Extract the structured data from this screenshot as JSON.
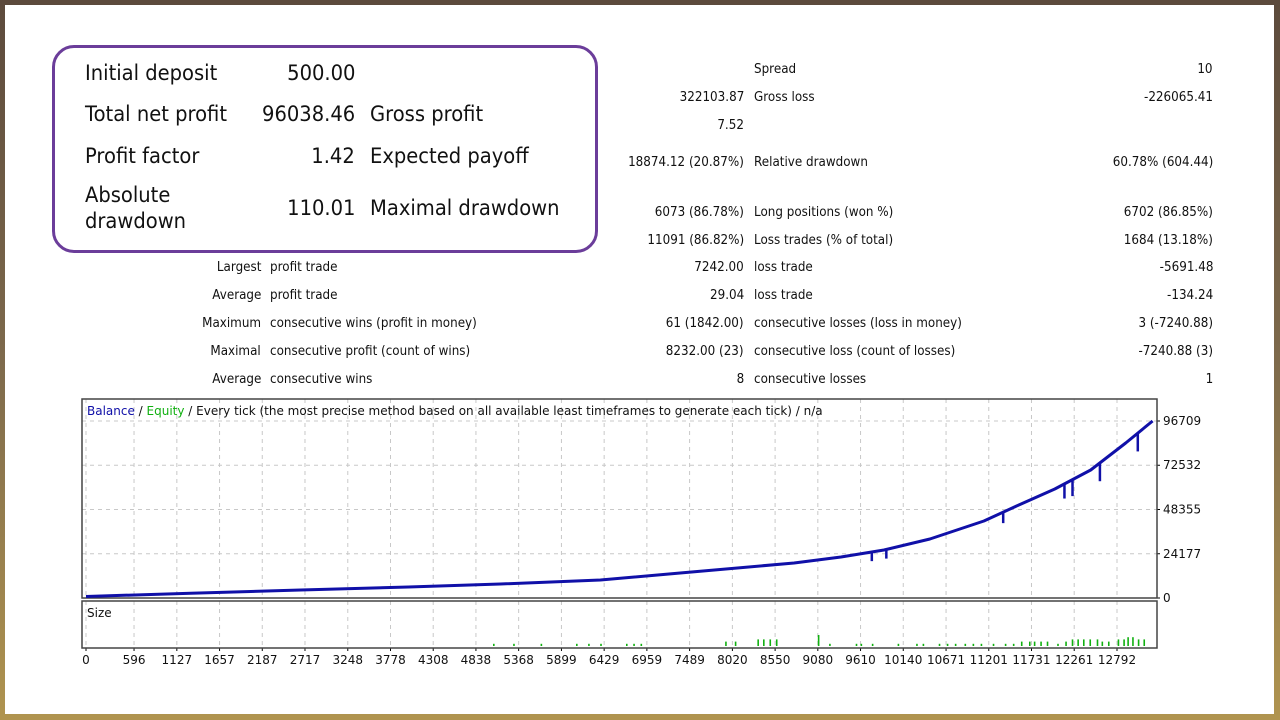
{
  "summary_box": {
    "rows": [
      {
        "label": "Initial deposit",
        "value": "500.00",
        "label2": ""
      },
      {
        "label": "Total net profit",
        "value": "96038.46",
        "label2": "Gross profit"
      },
      {
        "label": "Profit factor",
        "value": "1.42",
        "label2": "Expected payoff"
      },
      {
        "label": "Absolute",
        "label_line2": "drawdown",
        "value": "110.01",
        "label2": "Maximal drawdown"
      }
    ]
  },
  "right_rows": [
    {
      "value": "",
      "label": "Spread",
      "value2": "10"
    },
    {
      "value": "322103.87",
      "label": "Gross loss",
      "value2": "-226065.41"
    },
    {
      "value": "7.52",
      "label": "",
      "value2": ""
    },
    {
      "value": "18874.12 (20.87%)",
      "label": "Relative drawdown",
      "value2": "60.78% (604.44)"
    },
    {
      "value": "6073 (86.78%)",
      "label": "Long positions (won %)",
      "value2": "6702 (86.85%)"
    },
    {
      "value": "11091 (86.82%)",
      "label": "Loss trades (% of total)",
      "value2": "1684 (13.18%)"
    }
  ],
  "stats_rows": [
    {
      "prefix": "Largest",
      "label": "profit trade",
      "value": "7242.00",
      "label2": "loss trade",
      "value2": "-5691.48"
    },
    {
      "prefix": "Average",
      "label": "profit trade",
      "value": "29.04",
      "label2": "loss trade",
      "value2": "-134.24"
    },
    {
      "prefix": "Maximum",
      "label": "consecutive wins (profit in money)",
      "value": "61 (1842.00)",
      "label2": "consecutive losses (loss in money)",
      "value2": "3 (-7240.88)"
    },
    {
      "prefix": "Maximal",
      "label": "consecutive profit (count of wins)",
      "value": "8232.00 (23)",
      "label2": "consecutive loss (count of losses)",
      "value2": "-7240.88 (3)"
    },
    {
      "prefix": "Average",
      "label": "consecutive wins",
      "value": "8",
      "label2": "consecutive losses",
      "value2": "1"
    }
  ],
  "chart_data": {
    "type": "line",
    "title_parts": {
      "balance": "Balance",
      "sep1": " / ",
      "equity": "Equity",
      "rest": " / Every tick (the most precise method based on all available least timeframes to generate each tick) / n/a"
    },
    "size_label": "Size",
    "colors": {
      "balance": "#1010a8",
      "equity": "#10b010",
      "size": "#10b010"
    },
    "x_ticks": [
      "0",
      "596",
      "1127",
      "1657",
      "2187",
      "2717",
      "3248",
      "3778",
      "4308",
      "4838",
      "5368",
      "5899",
      "6429",
      "6959",
      "7489",
      "8020",
      "8550",
      "9080",
      "9610",
      "10140",
      "10671",
      "11201",
      "11731",
      "12261",
      "12792"
    ],
    "y_ticks": [
      "0",
      "24177",
      "48355",
      "72532",
      "96709"
    ],
    "xlim": [
      0,
      13250
    ],
    "ylim": [
      0,
      96709
    ],
    "series": [
      {
        "name": "Balance",
        "x": [
          0,
          1300,
          2664,
          4000,
          5142,
          6382,
          7373,
          8786,
          9368,
          9901,
          10471,
          11140,
          11574,
          12020,
          12466,
          12900,
          13234
        ],
        "y": [
          800,
          2600,
          4371,
          6000,
          7649,
          9835,
          13660,
          19123,
          22400,
          26226,
          32236,
          42071,
          50813,
          59555,
          69936,
          84689,
          96709
        ]
      }
    ],
    "drawdown_spikes": [
      {
        "x": 9750,
        "depth": 5000
      },
      {
        "x": 9930,
        "depth": 5000
      },
      {
        "x": 11380,
        "depth": 6000
      },
      {
        "x": 12140,
        "depth": 8000
      },
      {
        "x": 12240,
        "depth": 9000
      },
      {
        "x": 12580,
        "depth": 10000
      },
      {
        "x": 13050,
        "depth": 10000
      }
    ],
    "size_bars": {
      "x": [
        5050,
        5300,
        5640,
        6080,
        6230,
        6380,
        6700,
        6790,
        6880,
        7930,
        8050,
        8330,
        8400,
        8480,
        8560,
        9080,
        9220,
        9550,
        9610,
        9750,
        10070,
        10300,
        10380,
        10580,
        10680,
        10780,
        10900,
        11000,
        11100,
        11250,
        11400,
        11500,
        11600,
        11700,
        11760,
        11840,
        11920,
        12050,
        12150,
        12230,
        12300,
        12370,
        12450,
        12540,
        12600,
        12680,
        12800,
        12870,
        12920,
        12980,
        13050,
        13120
      ],
      "v": [
        1,
        1,
        1,
        1,
        1,
        1,
        1,
        1,
        1,
        2,
        2,
        3,
        3,
        3,
        3,
        5,
        1,
        1,
        1,
        1,
        1,
        1,
        1,
        1,
        1,
        1,
        1,
        1,
        1,
        1,
        1,
        1,
        2,
        2,
        2,
        2,
        2,
        1,
        2,
        3,
        3,
        3,
        3,
        3,
        2,
        2,
        3,
        3,
        4,
        4,
        3,
        3
      ]
    }
  }
}
